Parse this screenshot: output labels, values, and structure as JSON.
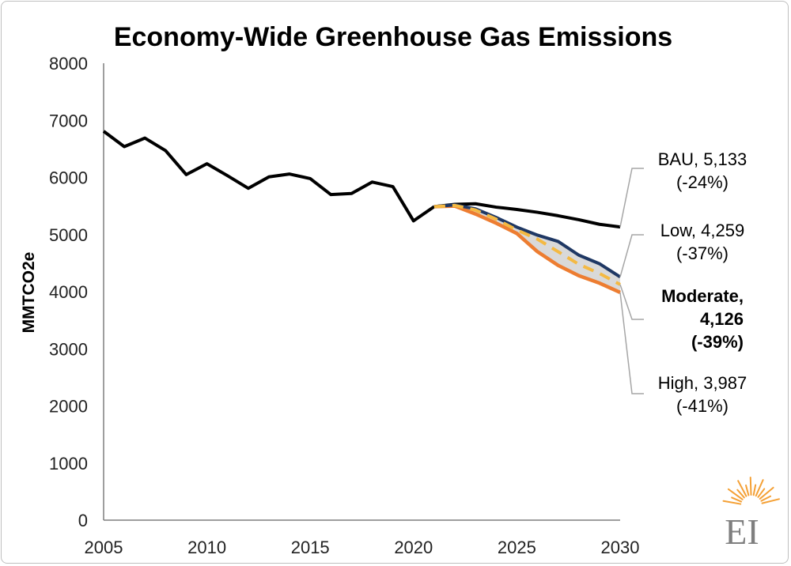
{
  "chart_data": {
    "type": "line",
    "title": "Economy-Wide Greenhouse Gas Emissions",
    "xlabel": "",
    "ylabel": "MMTCO2e",
    "xlim": [
      2005,
      2030
    ],
    "ylim": [
      0,
      8000
    ],
    "x_ticks": [
      "2005",
      "2010",
      "2015",
      "2020",
      "2025",
      "2030"
    ],
    "y_ticks": [
      "0",
      "1000",
      "2000",
      "3000",
      "4000",
      "5000",
      "6000",
      "7000",
      "8000"
    ],
    "grid": false,
    "historical": {
      "x": [
        2005,
        2006,
        2007,
        2008,
        2009,
        2010,
        2011,
        2012,
        2013,
        2014,
        2015,
        2016,
        2017,
        2018,
        2019,
        2020,
        2021
      ],
      "values": [
        6810,
        6540,
        6690,
        6470,
        6050,
        6240,
        6030,
        5810,
        6010,
        6060,
        5980,
        5700,
        5720,
        5920,
        5840,
        5240,
        5490
      ]
    },
    "series": [
      {
        "name": "BAU",
        "x": [
          2021,
          2022,
          2023,
          2024,
          2025,
          2026,
          2027,
          2028,
          2029,
          2030
        ],
        "values": [
          5490,
          5530,
          5540,
          5480,
          5440,
          5390,
          5330,
          5260,
          5180,
          5133
        ]
      },
      {
        "name": "Low",
        "x": [
          2021,
          2022,
          2023,
          2024,
          2025,
          2026,
          2027,
          2028,
          2029,
          2030
        ],
        "values": [
          5490,
          5520,
          5450,
          5300,
          5130,
          4990,
          4880,
          4640,
          4490,
          4259
        ]
      },
      {
        "name": "Moderate",
        "x": [
          2021,
          2022,
          2023,
          2024,
          2025,
          2026,
          2027,
          2028,
          2029,
          2030
        ],
        "values": [
          5490,
          5510,
          5430,
          5270,
          5080,
          4920,
          4700,
          4480,
          4320,
          4126
        ]
      },
      {
        "name": "High",
        "x": [
          2021,
          2022,
          2023,
          2024,
          2025,
          2026,
          2027,
          2028,
          2029,
          2030
        ],
        "values": [
          5490,
          5500,
          5360,
          5200,
          5020,
          4700,
          4460,
          4280,
          4150,
          3987
        ]
      }
    ],
    "colors": {
      "historical": "#000000",
      "BAU": "#000000",
      "Low": "#1f3864",
      "Moderate": "#f4b942",
      "High": "#ed7d31",
      "band": "#d9d9d9",
      "leader": "#a6a6a6"
    },
    "annotations": [
      {
        "series": "BAU",
        "line1": "BAU,  5,133",
        "line2": "(-24%)",
        "bold": false
      },
      {
        "series": "Low",
        "line1": "Low,  4,259",
        "line2": "(-37%)",
        "bold": false
      },
      {
        "series": "Moderate",
        "line1": "Moderate,",
        "line2": "4,126",
        "line3": "(-39%)",
        "bold": true
      },
      {
        "series": "High",
        "line1": "High,  3,987",
        "line2": "(-41%)",
        "bold": false
      }
    ]
  },
  "logo": {
    "text": "EI",
    "ray_color": "#f4a035",
    "text_color": "#7f7f7f"
  }
}
